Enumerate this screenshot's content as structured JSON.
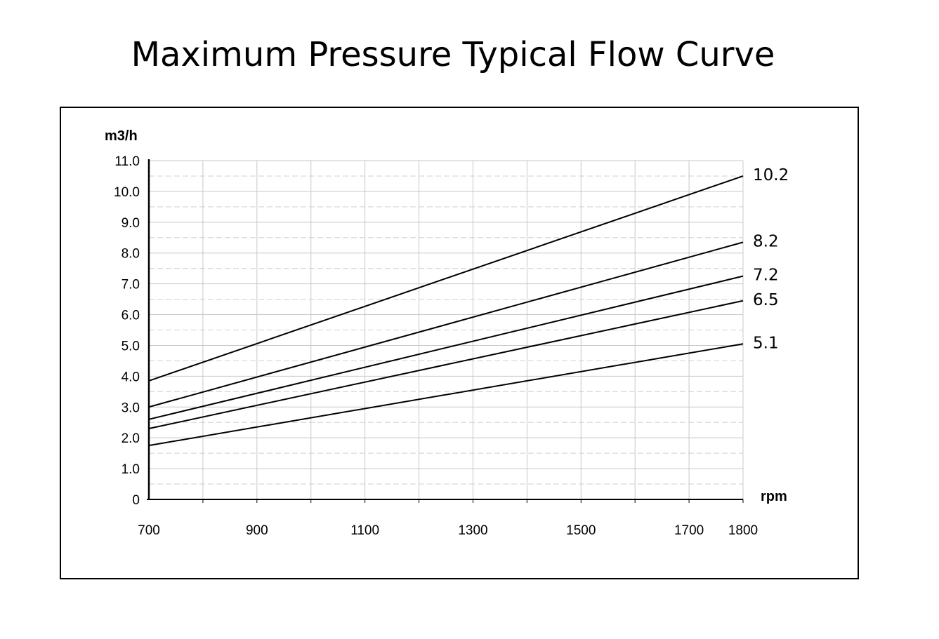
{
  "chart_data": {
    "type": "line",
    "title": "Maximum Pressure Typical Flow Curve",
    "xlabel": "rpm",
    "ylabel": "m3/h",
    "xlim": [
      700,
      1800
    ],
    "ylim": [
      0,
      11
    ],
    "x_ticks": [
      "700",
      "900",
      "1100",
      "1300",
      "1500",
      "1700",
      "1800"
    ],
    "x_tick_values": [
      700,
      900,
      1100,
      1300,
      1500,
      1700,
      1800
    ],
    "y_ticks": [
      "0",
      "1.0",
      "2.0",
      "3.0",
      "4.0",
      "5.0",
      "6.0",
      "7.0",
      "8.0",
      "9.0",
      "10.0",
      "11.0"
    ],
    "y_tick_values": [
      0,
      1,
      2,
      3,
      4,
      5,
      6,
      7,
      8,
      9,
      10,
      11
    ],
    "grid": true,
    "legend": "none",
    "series": [
      {
        "name": "10.2",
        "x": [
          700,
          1800
        ],
        "y": [
          3.85,
          10.5
        ]
      },
      {
        "name": "8.2",
        "x": [
          700,
          1800
        ],
        "y": [
          3.0,
          8.35
        ]
      },
      {
        "name": "7.2",
        "x": [
          700,
          1800
        ],
        "y": [
          2.6,
          7.25
        ]
      },
      {
        "name": "6.5",
        "x": [
          700,
          1800
        ],
        "y": [
          2.3,
          6.45
        ]
      },
      {
        "name": "5.1",
        "x": [
          700,
          1800
        ],
        "y": [
          1.75,
          5.05
        ]
      }
    ],
    "colors": {
      "line": "#000000",
      "grid": "#c8c8c8"
    }
  }
}
